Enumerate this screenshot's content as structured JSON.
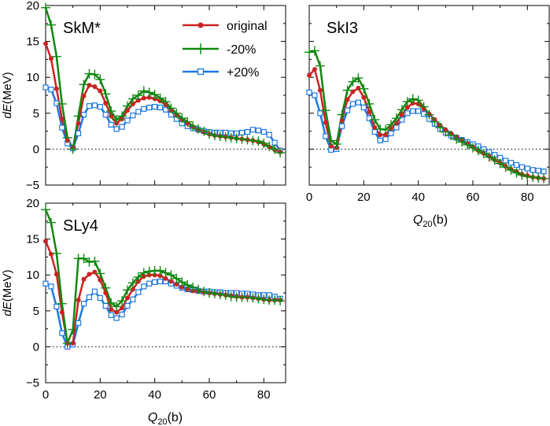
{
  "chart_data": {
    "type": "line",
    "series_styles": [
      {
        "name": "original",
        "color": "#cc2222",
        "marker": "dot"
      },
      {
        "name": "-20%",
        "color": "#118811",
        "marker": "plus"
      },
      {
        "name": "+20%",
        "color": "#1e78e0",
        "marker": "square"
      }
    ],
    "panels": [
      {
        "title": "SkM*",
        "xlim": [
          0,
          88
        ],
        "ylim": [
          -5,
          20
        ],
        "xticks": [
          0,
          20,
          40,
          60,
          80
        ],
        "yticks": [
          -5,
          0,
          5,
          10,
          15,
          20
        ],
        "ylabel": "dE(MeV)",
        "legend": {
          "entries": [
            "original",
            "-20%",
            "+20%"
          ]
        },
        "series": [
          {
            "name": "original",
            "x": [
              0,
              2,
              4,
              6,
              8,
              10,
              12,
              14,
              16,
              18,
              20,
              22,
              24,
              26,
              28,
              30,
              32,
              34,
              36,
              38,
              40,
              42,
              44,
              46,
              48,
              50,
              52,
              54,
              56,
              58,
              60,
              62,
              64,
              66,
              68,
              70,
              72,
              74,
              76,
              78,
              80,
              82,
              84,
              86
            ],
            "values": [
              14.7,
              12.6,
              8.4,
              4.2,
              1.2,
              0.2,
              3.6,
              7.4,
              8.9,
              8.7,
              8.1,
              6.4,
              4.6,
              3.6,
              4.2,
              5.4,
              6.3,
              6.8,
              7.1,
              7.2,
              7.0,
              6.7,
              6.2,
              5.4,
              4.7,
              4.1,
              3.6,
              3.1,
              2.7,
              2.4,
              2.1,
              1.9,
              1.8,
              1.7,
              1.6,
              1.5,
              1.4,
              1.3,
              1.2,
              1.0,
              0.7,
              0.3,
              -0.1,
              -0.4
            ]
          },
          {
            "name": "-20%",
            "x": [
              0,
              2,
              4,
              6,
              8,
              10,
              12,
              14,
              16,
              18,
              20,
              22,
              24,
              26,
              28,
              30,
              32,
              34,
              36,
              38,
              40,
              42,
              44,
              46,
              48,
              50,
              52,
              54,
              56,
              58,
              60,
              62,
              64,
              66,
              68,
              70,
              72,
              74,
              76,
              78,
              80,
              82,
              84,
              86
            ],
            "values": [
              19.7,
              17.3,
              12.9,
              6.3,
              1.6,
              0.0,
              4.6,
              9.0,
              10.5,
              10.4,
              9.7,
              7.7,
              5.3,
              4.1,
              4.6,
              6.0,
              7.0,
              7.5,
              8.1,
              7.9,
              7.6,
              7.1,
              6.6,
              5.7,
              5.0,
              4.3,
              3.8,
              3.2,
              2.8,
              2.5,
              2.1,
              1.9,
              1.8,
              1.7,
              1.6,
              1.5,
              1.4,
              1.3,
              1.2,
              1.1,
              0.8,
              0.4,
              0.0,
              -0.5
            ]
          },
          {
            "name": "+20%",
            "x": [
              0,
              2,
              4,
              6,
              8,
              10,
              12,
              14,
              16,
              18,
              20,
              22,
              24,
              26,
              28,
              30,
              32,
              34,
              36,
              38,
              40,
              42,
              44,
              46,
              48,
              50,
              52,
              54,
              56,
              58,
              60,
              62,
              64,
              66,
              68,
              70,
              72,
              74,
              76,
              78,
              80,
              82,
              84,
              86
            ],
            "values": [
              8.6,
              8.3,
              6.4,
              3.0,
              0.8,
              0.1,
              2.2,
              4.8,
              6.0,
              6.1,
              5.9,
              4.8,
              3.4,
              2.8,
              3.1,
              4.0,
              4.7,
              5.2,
              5.6,
              5.8,
              5.9,
              5.8,
              5.5,
              4.8,
              4.2,
              3.6,
              3.2,
              2.9,
              2.7,
              2.5,
              2.4,
              2.3,
              2.3,
              2.3,
              2.2,
              2.2,
              2.3,
              2.4,
              2.7,
              2.6,
              2.4,
              2.0,
              0.9,
              -0.2
            ]
          }
        ],
        "zero_line": true
      },
      {
        "title": "SkI3",
        "xlim": [
          0,
          88
        ],
        "ylim": [
          -5,
          20
        ],
        "xticks": [
          0,
          20,
          40,
          60,
          80
        ],
        "yticks": [
          -5,
          0,
          5,
          10,
          15,
          20
        ],
        "xlabel": "Q20(b)",
        "series": [
          {
            "name": "original",
            "x": [
              0,
              2,
              4,
              6,
              8,
              10,
              12,
              14,
              16,
              18,
              20,
              22,
              24,
              26,
              28,
              30,
              32,
              34,
              36,
              38,
              40,
              42,
              44,
              46,
              48,
              50,
              52,
              54,
              56,
              58,
              60,
              62,
              64,
              66,
              68,
              70,
              72,
              74,
              76,
              78,
              80,
              82,
              84,
              86
            ],
            "values": [
              10.3,
              11.1,
              8.2,
              3.7,
              0.4,
              0.2,
              4.0,
              6.9,
              8.0,
              8.5,
              7.2,
              5.2,
              3.0,
              2.0,
              2.0,
              2.9,
              3.6,
              4.8,
              5.8,
              6.4,
              6.3,
              5.6,
              4.9,
              4.1,
              3.3,
              2.7,
              2.2,
              1.7,
              1.3,
              0.8,
              0.3,
              -0.2,
              -0.6,
              -1.0,
              -1.5,
              -1.9,
              -2.4,
              -2.8,
              -3.1,
              -3.5,
              -3.7,
              -3.9,
              -4.0,
              -4.1
            ]
          },
          {
            "name": "-20%",
            "x": [
              0,
              2,
              4,
              6,
              8,
              10,
              12,
              14,
              16,
              18,
              20,
              22,
              24,
              26,
              28,
              30,
              32,
              34,
              36,
              38,
              40,
              42,
              44,
              46,
              48,
              50,
              52,
              54,
              56,
              58,
              60,
              62,
              64,
              66,
              68,
              70,
              72,
              74,
              76,
              78,
              80,
              82,
              84,
              86
            ],
            "values": [
              13.5,
              13.7,
              11.6,
              5.4,
              1.2,
              0.7,
              4.8,
              8.2,
              9.4,
              9.9,
              8.4,
              6.3,
              4.1,
              2.8,
              2.7,
              3.4,
              4.3,
              5.5,
              6.6,
              7.0,
              6.8,
              5.9,
              4.8,
              3.8,
              3.0,
              2.4,
              1.9,
              1.4,
              1.0,
              0.6,
              0.2,
              -0.2,
              -0.6,
              -1.1,
              -1.5,
              -2.0,
              -2.5,
              -2.9,
              -3.3,
              -3.6,
              -3.8,
              -3.9,
              -4.0,
              -4.1
            ]
          },
          {
            "name": "+20%",
            "x": [
              0,
              2,
              4,
              6,
              8,
              10,
              12,
              14,
              16,
              18,
              20,
              22,
              24,
              26,
              28,
              30,
              32,
              34,
              36,
              38,
              40,
              42,
              44,
              46,
              48,
              50,
              52,
              54,
              56,
              58,
              60,
              62,
              64,
              66,
              68,
              70,
              72,
              74,
              76,
              78,
              80,
              82,
              84,
              86
            ],
            "values": [
              7.9,
              7.5,
              5.0,
              1.8,
              -0.1,
              0.0,
              3.2,
              5.4,
              6.3,
              6.5,
              5.8,
              4.3,
              2.4,
              1.2,
              1.4,
              2.2,
              3.0,
              4.1,
              5.0,
              5.3,
              5.3,
              4.9,
              4.2,
              3.5,
              2.8,
              2.3,
              1.9,
              1.6,
              1.3,
              1.0,
              0.7,
              0.4,
              0.0,
              -0.4,
              -0.8,
              -1.2,
              -1.6,
              -1.9,
              -2.2,
              -2.5,
              -2.7,
              -2.9,
              -3.0,
              -3.1
            ]
          }
        ],
        "zero_line": true
      },
      {
        "title": "SLy4",
        "xlim": [
          0,
          88
        ],
        "ylim": [
          -5,
          20
        ],
        "xticks": [
          0,
          20,
          40,
          60,
          80
        ],
        "yticks": [
          -5,
          0,
          5,
          10,
          15,
          20
        ],
        "ylabel": "dE(MeV)",
        "xlabel": "Q20(b)",
        "series": [
          {
            "name": "original",
            "x": [
              0,
              2,
              4,
              6,
              8,
              10,
              12,
              14,
              16,
              18,
              20,
              22,
              24,
              26,
              28,
              30,
              32,
              34,
              36,
              38,
              40,
              42,
              44,
              46,
              48,
              50,
              52,
              54,
              56,
              58,
              60,
              62,
              64,
              66,
              68,
              70,
              72,
              74,
              76,
              78,
              80,
              82,
              84,
              86
            ],
            "values": [
              14.7,
              12.9,
              10.1,
              4.8,
              0.5,
              0.5,
              6.5,
              9.4,
              10.1,
              10.4,
              9.3,
              7.5,
              5.2,
              4.8,
              5.4,
              6.8,
              8.0,
              9.1,
              9.8,
              10.0,
              10.0,
              9.9,
              9.5,
              9.1,
              8.7,
              8.3,
              8.0,
              7.8,
              7.7,
              7.6,
              7.5,
              7.4,
              7.3,
              7.2,
              7.1,
              7.0,
              6.9,
              6.9,
              6.8,
              6.7,
              6.6,
              6.5,
              6.5,
              6.5
            ]
          },
          {
            "name": "-20%",
            "x": [
              0,
              2,
              4,
              6,
              8,
              10,
              12,
              14,
              16,
              18,
              20,
              22,
              24,
              26,
              28,
              30,
              32,
              34,
              36,
              38,
              40,
              42,
              44,
              46,
              48,
              50,
              52,
              54,
              56,
              58,
              60,
              62,
              64,
              66,
              68,
              70,
              72,
              74,
              76,
              78,
              80,
              82,
              84,
              86
            ],
            "values": [
              19.1,
              17.3,
              13.0,
              6.0,
              0.5,
              2.4,
              12.3,
              12.3,
              11.8,
              11.9,
              10.2,
              8.2,
              6.1,
              5.6,
              6.4,
              7.9,
              8.9,
              9.7,
              10.3,
              10.5,
              10.6,
              10.6,
              10.3,
              10.0,
              9.5,
              9.0,
              8.6,
              8.3,
              8.0,
              7.7,
              7.5,
              7.4,
              7.3,
              7.2,
              7.0,
              6.9,
              6.9,
              6.9,
              6.8,
              6.7,
              6.6,
              6.5,
              6.5,
              6.4
            ]
          },
          {
            "name": "+20%",
            "x": [
              0,
              2,
              4,
              6,
              8,
              10,
              12,
              14,
              16,
              18,
              20,
              22,
              24,
              26,
              28,
              30,
              32,
              34,
              36,
              38,
              40,
              42,
              44,
              46,
              48,
              50,
              52,
              54,
              56,
              58,
              60,
              62,
              64,
              66,
              68,
              70,
              72,
              74,
              76,
              78,
              80,
              82,
              84,
              86
            ],
            "values": [
              8.8,
              8.4,
              5.6,
              1.9,
              0.0,
              0.3,
              3.3,
              6.0,
              6.9,
              7.7,
              6.8,
              5.7,
              4.4,
              4.0,
              4.5,
              5.7,
              6.6,
              7.6,
              8.4,
              8.8,
              9.0,
              9.1,
              9.1,
              8.8,
              8.5,
              8.2,
              8.0,
              7.9,
              7.8,
              7.7,
              7.7,
              7.6,
              7.6,
              7.5,
              7.5,
              7.5,
              7.4,
              7.4,
              7.3,
              7.2,
              7.2,
              7.2,
              7.0,
              6.7
            ]
          }
        ],
        "zero_line": true
      }
    ]
  }
}
